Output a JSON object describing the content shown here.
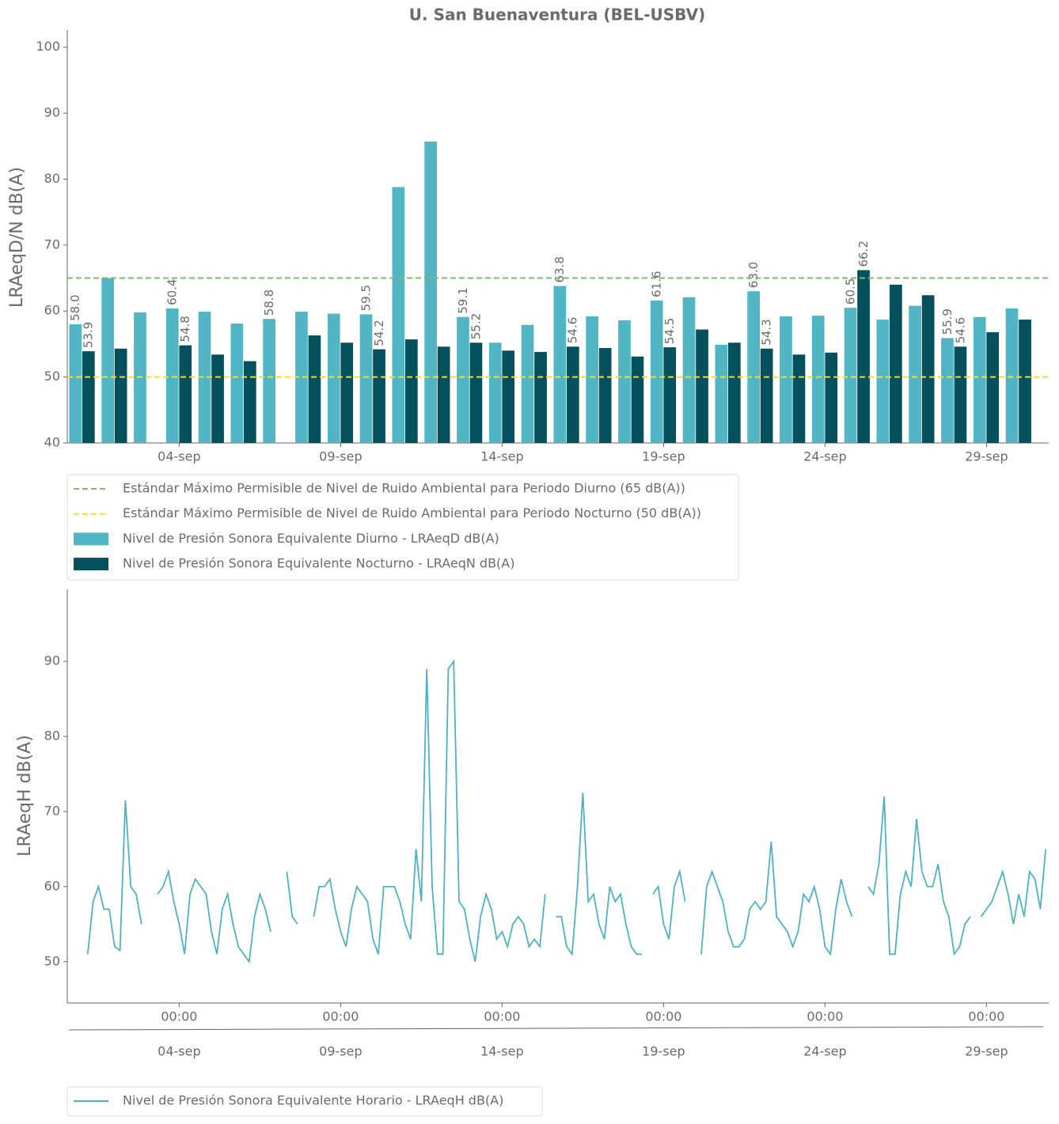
{
  "chart_data": [
    {
      "type": "bar",
      "title": "U. San Buenaventura (BEL-USBV)",
      "y_label": "LRAeqD/N dB(A)",
      "categories": [
        null,
        null,
        null,
        "04-sep",
        null,
        null,
        null,
        null,
        "09-sep",
        null,
        null,
        null,
        null,
        "14-sep",
        null,
        null,
        null,
        null,
        "19-sep",
        null,
        null,
        null,
        null,
        "24-sep",
        null,
        null,
        null,
        null,
        "29-sep",
        null
      ],
      "series": [
        {
          "name": "Nivel de Presión Sonora Equivalente Diurno - LRAeqD dB(A)",
          "color": "#52b5c4",
          "values": [
            58.0,
            65.0,
            59.8,
            60.4,
            59.9,
            58.1,
            58.8,
            59.9,
            59.6,
            59.5,
            78.8,
            85.7,
            59.1,
            55.2,
            57.9,
            63.8,
            59.2,
            58.6,
            61.6,
            62.1,
            54.9,
            63.0,
            59.2,
            59.3,
            60.5,
            58.7,
            60.8,
            55.9,
            59.1,
            60.4
          ],
          "value_labels": [
            "58.0",
            null,
            null,
            "60.4",
            null,
            null,
            "58.8",
            null,
            null,
            "59.5",
            null,
            null,
            "59.1",
            null,
            null,
            "63.8",
            null,
            null,
            "61.6",
            null,
            null,
            "63.0",
            null,
            null,
            "60.5",
            null,
            null,
            "55.9",
            null,
            null
          ]
        },
        {
          "name": "Nivel de Presión Sonora Equivalente Nocturno - LRAeqN dB(A)",
          "color": "#04505c",
          "values": [
            53.9,
            54.3,
            null,
            54.8,
            53.4,
            52.4,
            null,
            56.3,
            55.2,
            54.2,
            55.7,
            54.6,
            55.2,
            54.0,
            53.8,
            54.6,
            54.4,
            53.1,
            54.5,
            57.2,
            55.2,
            54.3,
            53.4,
            53.7,
            66.2,
            64.0,
            62.4,
            54.6,
            56.8,
            58.7
          ],
          "value_labels": [
            "53.9",
            null,
            null,
            "54.8",
            null,
            null,
            null,
            null,
            null,
            "54.2",
            null,
            null,
            "55.2",
            null,
            null,
            "54.6",
            null,
            null,
            "54.5",
            null,
            null,
            "54.3",
            null,
            null,
            "66.2",
            null,
            null,
            "54.6",
            null,
            null
          ]
        }
      ],
      "hlines": [
        {
          "value": 65,
          "color": "#82b96a",
          "label": "Estándar Máximo Permisible de Nivel de Ruido Ambiental para Periodo Diurno (65 dB(A))"
        },
        {
          "value": 50,
          "color": "#f2dd2c",
          "label": "Estándar Máximo Permisible de Nivel de Ruido Ambiental para Periodo Nocturno (50 dB(A))"
        }
      ],
      "ylim": [
        40,
        102.6
      ],
      "yticks": [
        40,
        50,
        60,
        70,
        80,
        90,
        100
      ],
      "legend": "bottom-left"
    },
    {
      "type": "line",
      "y_label": "LRAeqH dB(A)",
      "x": [
        "01-sep 04:00",
        "01-sep 08:00",
        "01-sep 12:00",
        "01-sep 16:00",
        "01-sep 20:00",
        "02-sep 00:00",
        "02-sep 04:00",
        "02-sep 08:00",
        "02-sep 12:00",
        "02-sep 16:00",
        "02-sep 20:00",
        "03-sep 00:00",
        "03-sep 04:00",
        "03-sep 08:00",
        "03-sep 12:00",
        "03-sep 16:00",
        "03-sep 20:00",
        "04-sep 00:00",
        "04-sep 04:00",
        "04-sep 08:00",
        "04-sep 12:00",
        "04-sep 16:00",
        "04-sep 20:00",
        "05-sep 00:00",
        "05-sep 04:00",
        "05-sep 08:00",
        "05-sep 12:00",
        "05-sep 16:00",
        "05-sep 20:00",
        "06-sep 00:00",
        "06-sep 04:00",
        "06-sep 08:00",
        "06-sep 12:00",
        "06-sep 16:00",
        "06-sep 20:00",
        "07-sep 00:00",
        "07-sep 04:00",
        "07-sep 08:00",
        "07-sep 12:00",
        "07-sep 16:00",
        "07-sep 20:00",
        "08-sep 00:00",
        "08-sep 04:00",
        "08-sep 08:00",
        "08-sep 12:00",
        "08-sep 16:00",
        "08-sep 20:00",
        "09-sep 00:00",
        "09-sep 04:00",
        "09-sep 08:00",
        "09-sep 12:00",
        "09-sep 16:00",
        "09-sep 20:00",
        "10-sep 00:00",
        "10-sep 04:00",
        "10-sep 08:00",
        "10-sep 12:00",
        "10-sep 16:00",
        "10-sep 20:00",
        "11-sep 00:00",
        "11-sep 04:00",
        "11-sep 08:00",
        "11-sep 12:00",
        "11-sep 16:00",
        "11-sep 20:00",
        "12-sep 00:00",
        "12-sep 04:00",
        "12-sep 08:00",
        "12-sep 12:00",
        "12-sep 16:00",
        "12-sep 20:00",
        "13-sep 00:00",
        "13-sep 04:00",
        "13-sep 08:00",
        "13-sep 12:00",
        "13-sep 16:00",
        "13-sep 20:00",
        "14-sep 00:00",
        "14-sep 04:00",
        "14-sep 08:00",
        "14-sep 12:00",
        "14-sep 16:00",
        "14-sep 20:00",
        "15-sep 00:00",
        "15-sep 04:00",
        "15-sep 08:00",
        "15-sep 12:00",
        "15-sep 16:00",
        "15-sep 20:00",
        "16-sep 00:00",
        "16-sep 04:00",
        "16-sep 08:00",
        "16-sep 12:00",
        "16-sep 16:00",
        "16-sep 20:00",
        "17-sep 00:00",
        "17-sep 04:00",
        "17-sep 08:00",
        "17-sep 12:00",
        "17-sep 16:00",
        "17-sep 20:00",
        "18-sep 00:00",
        "18-sep 04:00",
        "18-sep 08:00",
        "18-sep 12:00",
        "18-sep 16:00",
        "18-sep 20:00",
        "19-sep 00:00",
        "19-sep 04:00",
        "19-sep 08:00",
        "19-sep 12:00",
        "19-sep 16:00",
        "19-sep 20:00",
        "20-sep 00:00",
        "20-sep 04:00",
        "20-sep 08:00",
        "20-sep 12:00",
        "20-sep 16:00",
        "20-sep 20:00",
        "21-sep 00:00",
        "21-sep 04:00",
        "21-sep 08:00",
        "21-sep 12:00",
        "21-sep 16:00",
        "21-sep 20:00",
        "22-sep 00:00",
        "22-sep 04:00",
        "22-sep 08:00",
        "22-sep 12:00",
        "22-sep 16:00",
        "22-sep 20:00",
        "23-sep 00:00",
        "23-sep 04:00",
        "23-sep 08:00",
        "23-sep 12:00",
        "23-sep 16:00",
        "23-sep 20:00",
        "24-sep 00:00",
        "24-sep 04:00",
        "24-sep 08:00",
        "24-sep 12:00",
        "24-sep 16:00",
        "24-sep 20:00",
        "25-sep 00:00",
        "25-sep 04:00",
        "25-sep 08:00",
        "25-sep 12:00",
        "25-sep 16:00",
        "25-sep 20:00",
        "26-sep 00:00",
        "26-sep 04:00",
        "26-sep 08:00",
        "26-sep 12:00",
        "26-sep 16:00",
        "26-sep 20:00",
        "27-sep 00:00",
        "27-sep 04:00",
        "27-sep 08:00",
        "27-sep 12:00",
        "27-sep 16:00",
        "27-sep 20:00",
        "28-sep 00:00",
        "28-sep 04:00",
        "28-sep 08:00",
        "28-sep 12:00",
        "28-sep 16:00",
        "28-sep 20:00",
        "29-sep 00:00",
        "29-sep 04:00",
        "29-sep 08:00",
        "29-sep 12:00",
        "29-sep 16:00",
        "29-sep 20:00",
        "30-sep 00:00",
        "30-sep 04:00",
        "30-sep 08:00",
        "30-sep 12:00",
        "30-sep 16:00",
        "30-sep 20:00"
      ],
      "series": [
        {
          "name": "Nivel de Presión Sonora Equivalente Horario - LRAeqH dB(A)",
          "color": "#4db3c2",
          "values": [
            51,
            58,
            60,
            57,
            57,
            52,
            51.5,
            71.5,
            60,
            59,
            55,
            null,
            null,
            59,
            60,
            62,
            58,
            55,
            51,
            59,
            61,
            60,
            59,
            54,
            51,
            57,
            59,
            55,
            52,
            51,
            50,
            56,
            59,
            57,
            54,
            null,
            null,
            62,
            56,
            55,
            null,
            null,
            56,
            60,
            60,
            61,
            57,
            54,
            52,
            57,
            60,
            59,
            58,
            53,
            51,
            60,
            60,
            60,
            58,
            55,
            53,
            65,
            58,
            89,
            60,
            51,
            51,
            89,
            90,
            58,
            57,
            53,
            50,
            56,
            59,
            57,
            53,
            54,
            52,
            55,
            56,
            55,
            52,
            53,
            52,
            59,
            null,
            56,
            56,
            52,
            51,
            60,
            72.5,
            58,
            59,
            55,
            53,
            60,
            58,
            59,
            55,
            52,
            51,
            51,
            null,
            59,
            60,
            55,
            53,
            60,
            62,
            58,
            null,
            null,
            51,
            60,
            62,
            60,
            58,
            54,
            52,
            52,
            53,
            57,
            58,
            57,
            58,
            66,
            56,
            55,
            54,
            52,
            54,
            59,
            58,
            60,
            57,
            52,
            51,
            57,
            61,
            58,
            56,
            null,
            null,
            60,
            59,
            63,
            72,
            51,
            51,
            59,
            62,
            60,
            69,
            62,
            60,
            60,
            63,
            58,
            56,
            51,
            52,
            55,
            56,
            null,
            56,
            57,
            58,
            60,
            62,
            59,
            55,
            59,
            56,
            62,
            61,
            57,
            65
          ]
        }
      ],
      "xticks": [
        {
          "value": "04-sep 00:00",
          "label": "00:00"
        },
        {
          "value": "09-sep 00:00",
          "label": "00:00"
        },
        {
          "value": "14-sep 00:00",
          "label": "00:00"
        },
        {
          "value": "19-sep 00:00",
          "label": "00:00"
        },
        {
          "value": "24-sep 00:00",
          "label": "00:00"
        },
        {
          "value": "29-sep 00:00",
          "label": "00:00"
        }
      ],
      "xticks2": [
        {
          "value": "04-sep 00:00",
          "label": "04-sep"
        },
        {
          "value": "09-sep 00:00",
          "label": "09-sep"
        },
        {
          "value": "14-sep 00:00",
          "label": "14-sep"
        },
        {
          "value": "19-sep 00:00",
          "label": "19-sep"
        },
        {
          "value": "24-sep 00:00",
          "label": "24-sep"
        },
        {
          "value": "29-sep 00:00",
          "label": "29-sep"
        }
      ],
      "ylim": [
        44.5,
        99.6
      ],
      "yticks": [
        50,
        60,
        70,
        80,
        90
      ],
      "legend": "bottom-left"
    }
  ]
}
